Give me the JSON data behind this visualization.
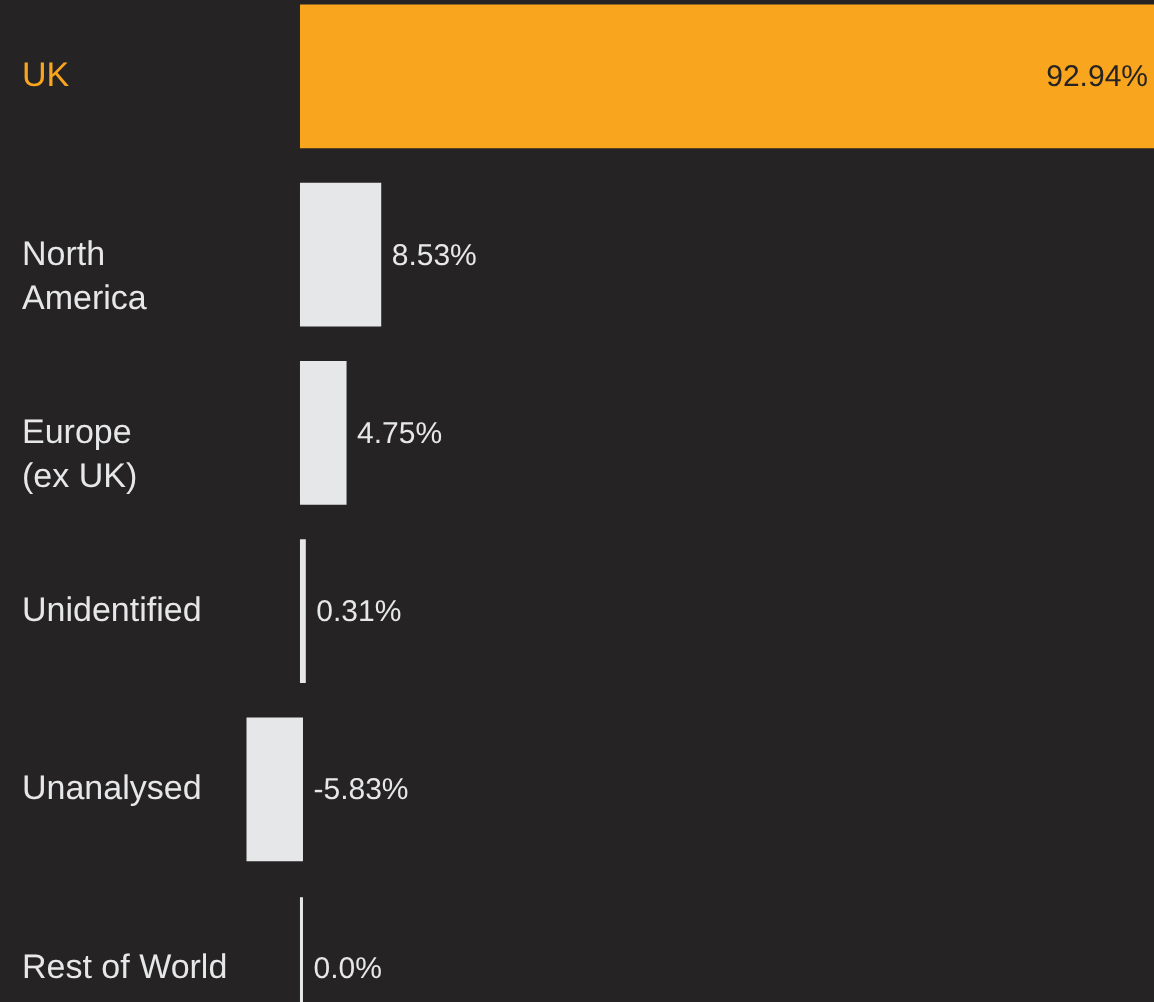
{
  "chart_data": {
    "type": "bar",
    "orientation": "horizontal",
    "categories": [
      "UK",
      "North\nAmerica",
      "Europe\n(ex UK)",
      "Unidentified",
      "Unanalysed",
      "Rest of World"
    ],
    "values": [
      92.94,
      8.53,
      4.75,
      0.31,
      -5.83,
      0.0
    ],
    "colors": [
      "#f9a51d",
      "#e6e7e8",
      "#e6e7e8",
      "#e6e7e8",
      "#e6e7e8",
      "#e6e7e8"
    ],
    "value_labels": [
      "92.94%",
      "8.53%",
      "4.75%",
      "0.31%",
      "-5.83%",
      "0.0%"
    ],
    "data_labels": true
  }
}
